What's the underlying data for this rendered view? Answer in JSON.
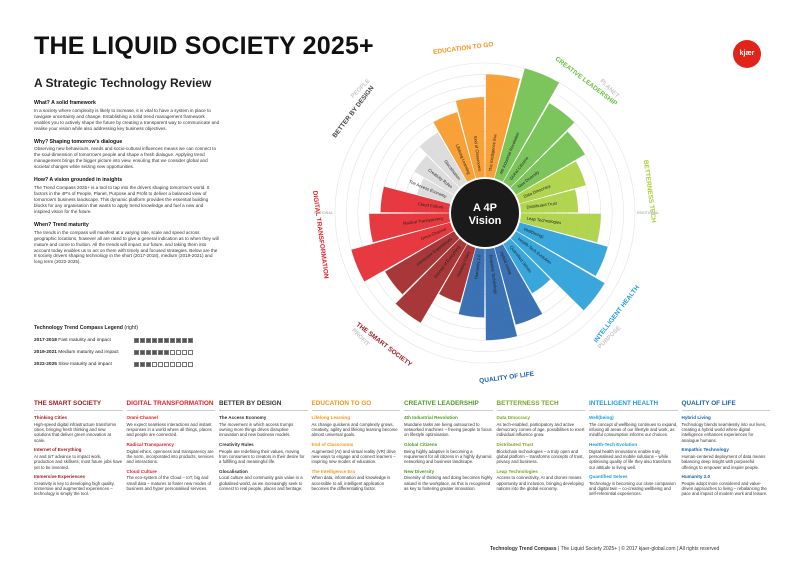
{
  "title": "THE LIQUID SOCIETY 2025+",
  "subtitle": "A Strategic Technology Review",
  "logo": "kjær global",
  "intro": [
    {
      "heading": "What? A solid framework",
      "text": "In a society where complexity is likely to increase, it is vital to have a system in place to navigate uncertainty and change. Establishing a solid trend management framework enables you to actively shape the future by creating a transparent way to communicate and realise your vision while also addressing key business objectives."
    },
    {
      "heading": "Why? Shaping tomorrow's dialogue",
      "text": "Observing new behaviours, needs and socio-cultural influences means we can connect to the soul-dimension of tomorrow's people and shape a fresh dialogue. Applying trend management brings the bigger picture into view, ensuring that we consider global and societal changes while seizing new opportunities."
    },
    {
      "heading": "How? A vision grounded in insights",
      "text": "The Trend Compass 2025+ is a tool to tap into the drivers shaping tomorrow's world. It factors in the 4P's of People, Planet, Purpose and Profit to deliver a balanced view of tomorrow's business landscape. This dynamic platform provides the essential building blocks for any organisation that wants to apply trend knowledge and fuel a new and inspired vision for the future."
    },
    {
      "heading": "When? Trend maturity",
      "text": "The trends in the compass will manifest at a varying rate, scale and speed across geographic locations, however all are rated to give a general indication as to when they will mature and come to fruition. All the trends will impact our future, and taking them into account today enables us to act on them with timely and focused strategies. Below are the 8 society drivers shaping technology in the short (2017-2018), medium (2019-2021) and long term (2022-2025)."
    }
  ],
  "legend": {
    "title": "Technology Trend Compass Legend",
    "title_suffix": "(right)",
    "rows": [
      {
        "years": "2017-2018",
        "desc": "Fast maturity and impact",
        "filled": 10
      },
      {
        "years": "2019-2021",
        "desc": "Medium maturity and impact",
        "filled": 6
      },
      {
        "years": "2022-2025",
        "desc": "Slow maturity and impact",
        "filled": 3
      }
    ]
  },
  "compass": {
    "center": [
      "A 4P",
      "Vision"
    ],
    "outer_labels": [
      "PEOPLE",
      "PLANET",
      "PURPOSE",
      "PROFIT"
    ],
    "side_labels": [
      "RATIONAL",
      "EMOTIONAL"
    ],
    "categories": [
      {
        "name": "EDUCATION TO GO",
        "color": "#f7941d",
        "trends": [
          "Lifelong Learning",
          "End of Classrooms",
          "The Intelligence Era"
        ],
        "levels": [
          6,
          7,
          9
        ]
      },
      {
        "name": "CREATIVE LEADERSHIP",
        "color": "#6abd45",
        "trends": [
          "4th Industrial Revolution",
          "Global Citizens",
          "New Diversity"
        ],
        "levels": [
          10,
          8,
          7
        ]
      },
      {
        "name": "BETTERNESS TECH",
        "color": "#a6ce39",
        "trends": [
          "Data Dmocracy",
          "Distributed Trust",
          "Leap Technologies"
        ],
        "levels": [
          6,
          5,
          7
        ]
      },
      {
        "name": "INTELLIGENT HEALTH",
        "color": "#1f9bd7",
        "trends": [
          "Well(being)",
          "Health-Tech Evolution",
          "Quantified Selves"
        ],
        "levels": [
          8,
          9,
          5
        ]
      },
      {
        "name": "QUALITY OF LIFE",
        "color": "#1f5fa8",
        "trends": [
          "Hybrid Living",
          "Empathic Technology",
          "Humanity 2.0"
        ],
        "levels": [
          7,
          8,
          6
        ]
      },
      {
        "name": "THE SMART SOCIETY",
        "color": "#9b1b1e",
        "trends": [
          "Thinking Cities",
          "Internet of Everything",
          "Immersive Experiences"
        ],
        "levels": [
          5,
          8,
          7
        ]
      },
      {
        "name": "DIGITAL TRANSFORMATION",
        "color": "#e41e26",
        "trends": [
          "Omni-Channel",
          "Radical Transparency",
          "Cloud Culture"
        ],
        "levels": [
          9,
          7,
          6
        ]
      },
      {
        "name": "BETTER BY DESIGN",
        "color": "#d8d8d8",
        "trends": [
          "The Access Economy",
          "Creativity Rules",
          "Glocalisation"
        ],
        "levels": [
          3,
          4,
          5
        ]
      }
    ]
  },
  "columns": [
    {
      "heading": "THE SMART SOCIETY",
      "color": "#9b1b1e",
      "items": [
        {
          "name": "Thinking Cities",
          "text": "High-speed digital infrastructure transforms cities, bringing fresh thinking and new solutions that deliver green innovation at scale."
        },
        {
          "name": "Internet of Everything",
          "text": "AI and IoT advance to impact work, production and skillsets; most future jobs have yet to be invented."
        },
        {
          "name": "Immersive Experiences",
          "text": "Creativity is key to developing high quality, immersive and augmented experiences – technology is simply the tool."
        }
      ]
    },
    {
      "heading": "DIGITAL TRANSFORMATION",
      "color": "#e41e26",
      "items": [
        {
          "name": "Omni-Channel",
          "text": "We expect seamless interactions and instant responses in a world where all things, places and people are connected."
        },
        {
          "name": "Radical Transparency",
          "text": "Digital ethics, openness and transparency are the norm, incorporated into products, services and interactions."
        },
        {
          "name": "Cloud Culture",
          "text": "The eco-system of the Cloud – IoT, big and small data – matures to foster new modes of business and hyper personalised services."
        }
      ]
    },
    {
      "heading": "BETTER BY DESIGN",
      "color": "#333333",
      "items": [
        {
          "name": "The Access Economy",
          "text": "The movement in which access trumps owning more things drives disruptive innovation and new business models."
        },
        {
          "name": "Creativity Rules",
          "text": "People are redefining their values, moving from consumers to creators in their desire for a fulfilling and meaningful life."
        },
        {
          "name": "Glocalisation",
          "text": "Local culture and community gain value in a globalised world, as we increasingly seek to connect to real people, places and heritage."
        }
      ]
    },
    {
      "heading": "EDUCATION TO GO",
      "color": "#f7941d",
      "items": [
        {
          "name": "Lifelong Learning",
          "text": "As change quickens and complexity grows, creativity, agility and lifelong learning become almost universal goals."
        },
        {
          "name": "End of Classrooms",
          "text": "Augmented (AI) and virtual reality (VR) drive new ways to engage and connect learners – inspiring new modes of education."
        },
        {
          "name": "The Intelligence Era",
          "text": "When data, information and knowledge is accessible to all, intelligent application becomes the differentiating factor."
        }
      ]
    },
    {
      "heading": "CREATIVE LEADERSHIP",
      "color": "#4f9a2c",
      "items": [
        {
          "name": "4th Industrial Revolution",
          "text": "Mundane tasks are being outsourced to networked machines – freeing people to focus on lifestyle optimisation."
        },
        {
          "name": "Global Citizens",
          "text": "Being highly adaptive is becoming a requirement for all citizens in a highly dynamic networking and business landscape."
        },
        {
          "name": "New Diversity",
          "text": "Diversity of thinking and doing becomes highly valued in the workplace, as this is recognised as key to fostering greater innovation."
        }
      ]
    },
    {
      "heading": "BETTERNESS TECH",
      "color": "#7ba428",
      "items": [
        {
          "name": "Data Dmocracy",
          "text": "As tech-enabled, participatory and active democracy comes of age, possibilities to exert individual influence grow."
        },
        {
          "name": "Distributed Trust",
          "text": "Blockchain technologies – a truly open and global platform – transforms concepts of trust, privacy and business."
        },
        {
          "name": "Leap Technologies",
          "text": "Access to connectivity, AI and drones means opportunity and inclusion, bringing developing nations into the global economy."
        }
      ]
    },
    {
      "heading": "INTELLIGENT HEALTH",
      "color": "#1f9bd7",
      "items": [
        {
          "name": "Well(being)",
          "text": "The concept of wellbeing continues to expand, infusing all areas of our lifestyle and work, as mindful consumption informs our choices."
        },
        {
          "name": "Health-Tech Evolution",
          "text": "Digital health innovations enable truly personalised and mobile solutions – while optimising quality of life they also transform our attitude to living well."
        },
        {
          "name": "Quantified Selves",
          "text": "Technology is becoming our close companion and digital twin – co-creating wellbeing and self-referential experiences."
        }
      ]
    },
    {
      "heading": "QUALITY OF LIFE",
      "color": "#1f5fa8",
      "items": [
        {
          "name": "Hybrid Living",
          "text": "Technology blends seamlessly into our lives, creating a hybrid world where digital intelligence enhances experiences for analogue humans."
        },
        {
          "name": "Empathic Technology",
          "text": "Human-centered deployment of data means balancing deep insight with purposeful offerings to empower and inspire people."
        },
        {
          "name": "Humanity 2.0",
          "text": "People adopt more considered and value-driven approaches to living – rebalancing the pace and impact of modern work and leisure."
        }
      ]
    }
  ],
  "footer": {
    "brand": "Technology Trend Compass",
    "rest": "| The Liquid Society 2025+  | © 2017 kjaer-global.com  | All rights reserved"
  }
}
